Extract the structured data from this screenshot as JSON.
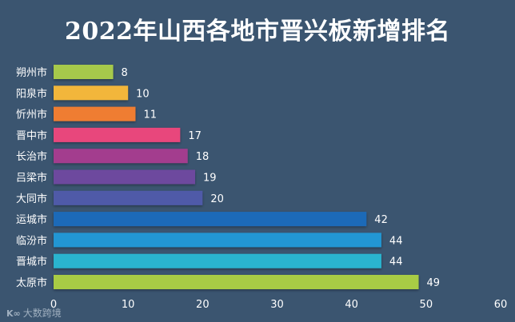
{
  "chart_data": {
    "type": "bar",
    "orientation": "horizontal",
    "title": "2022年山西各地市晋兴板新增排名",
    "categories": [
      "朔州市",
      "阳泉市",
      "忻州市",
      "晋中市",
      "长治市",
      "吕梁市",
      "大同市",
      "运城市",
      "临汾市",
      "晋城市",
      "太原市"
    ],
    "values": [
      8,
      10,
      11,
      17,
      18,
      19,
      20,
      42,
      44,
      44,
      49
    ],
    "colors": [
      "#a6c94b",
      "#f2b63a",
      "#ef7d32",
      "#e8467c",
      "#a33c8e",
      "#6d4a9e",
      "#4f5aa8",
      "#1e6bb8",
      "#2196d3",
      "#2ab4cf",
      "#a8cc45"
    ],
    "xlim": [
      0,
      60
    ],
    "xticks": [
      0,
      10,
      20,
      30,
      40,
      50,
      60
    ],
    "grid": false,
    "data_labels": true
  },
  "watermark": {
    "logo": "K∞",
    "text": "大数跨境"
  }
}
